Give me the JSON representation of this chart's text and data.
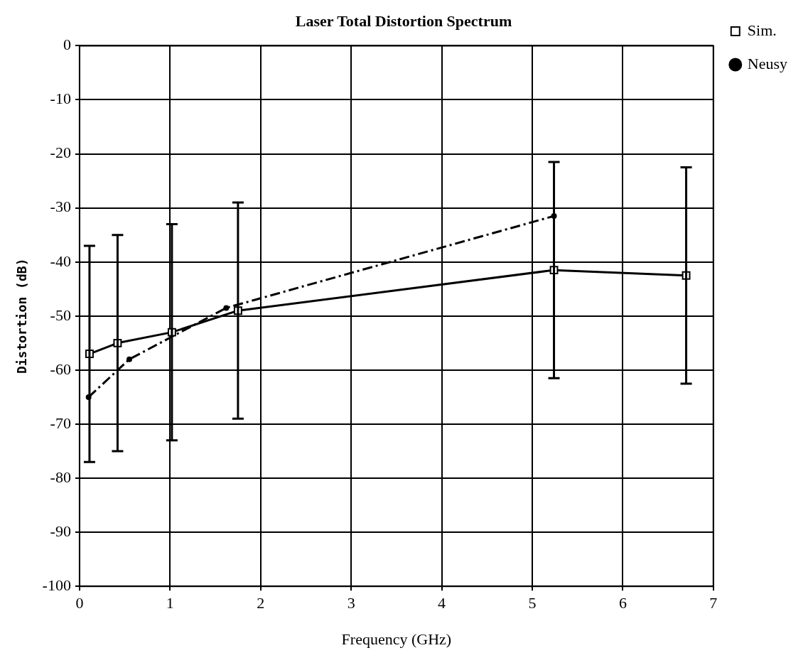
{
  "chart_data": {
    "type": "line",
    "title": "Laser Total Distortion Spectrum",
    "xlabel": "Frequency (GHz)",
    "ylabel": "Distortion (dB)",
    "xlim": [
      0,
      7
    ],
    "xticks": [
      0,
      1,
      2,
      3,
      4,
      5,
      6,
      7
    ],
    "ylim": [
      -100,
      0
    ],
    "yticks": [
      0,
      -10,
      -20,
      -30,
      -40,
      -50,
      -60,
      -70,
      -80,
      -90,
      -100
    ],
    "grid": true,
    "legend": "right",
    "series": [
      {
        "name": "Sim.",
        "color": "#000000",
        "marker": "square",
        "line_style": "solid",
        "x": [
          0.11,
          0.42,
          1.02,
          1.75,
          5.24,
          6.7
        ],
        "values": [
          -57,
          -55,
          -53,
          -49,
          -41.5,
          -42.5
        ],
        "errors": [
          20,
          20,
          20,
          20,
          20,
          20
        ]
      },
      {
        "name": "Neusy",
        "color": "#000000",
        "marker": "circle",
        "line_style": "dashed",
        "x": [
          0.1,
          0.55,
          1.62,
          5.24
        ],
        "values": [
          -65,
          -58,
          -48.5,
          -31.5
        ]
      }
    ]
  }
}
